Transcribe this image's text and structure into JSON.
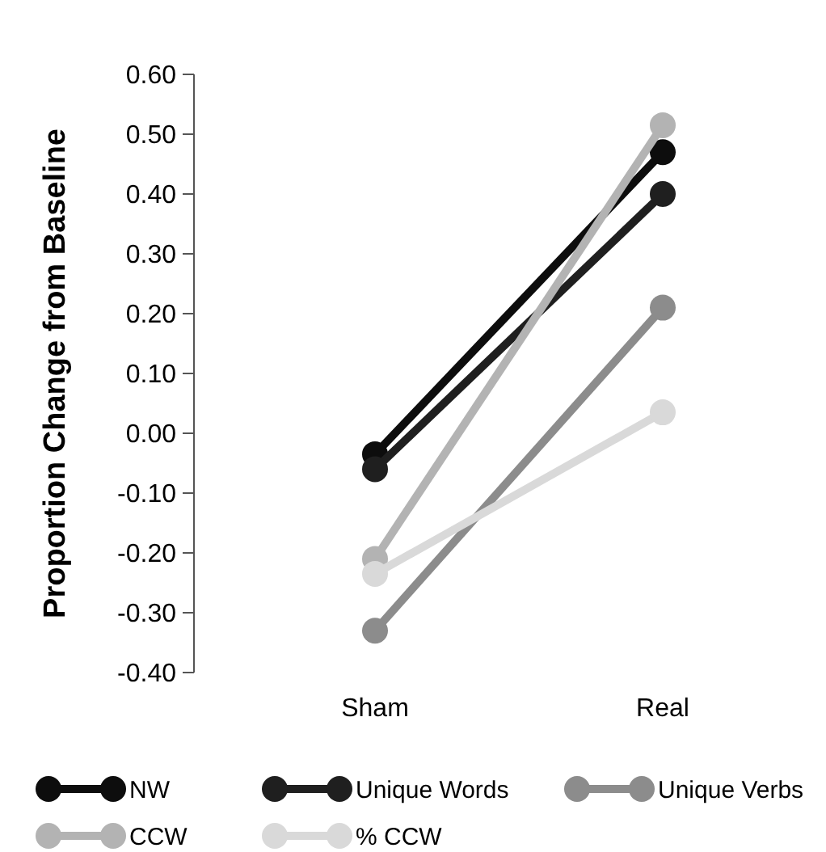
{
  "chart_data": {
    "type": "line",
    "ylabel": "Proportion Change from Baseline",
    "categories": [
      "Sham",
      "Real"
    ],
    "ylim": [
      -0.4,
      0.6
    ],
    "yticks": [
      {
        "value": -0.4,
        "label": "-0.40"
      },
      {
        "value": -0.3,
        "label": "-0.30"
      },
      {
        "value": -0.2,
        "label": "-0.20"
      },
      {
        "value": -0.1,
        "label": "-0.10"
      },
      {
        "value": 0,
        "label": "0.00"
      },
      {
        "value": 0.1,
        "label": "0.10"
      },
      {
        "value": 0.2,
        "label": "0.20"
      },
      {
        "value": 0.3,
        "label": "0.30"
      },
      {
        "value": 0.4,
        "label": "0.40"
      },
      {
        "value": 0.5,
        "label": "0.50"
      },
      {
        "value": 0.6,
        "label": "0.60"
      }
    ],
    "marker": "circle",
    "line_style": "solid",
    "legend": "bottom",
    "grid": false,
    "series": [
      {
        "name": "NW",
        "color": "#0d0d0d",
        "values": [
          -0.035,
          0.47
        ]
      },
      {
        "name": "Unique Words",
        "color": "#1f1f1f",
        "values": [
          -0.06,
          0.4
        ]
      },
      {
        "name": "Unique Verbs",
        "color": "#8c8c8c",
        "values": [
          -0.33,
          0.21
        ]
      },
      {
        "name": "CCW",
        "color": "#b3b3b3",
        "values": [
          -0.21,
          0.515
        ]
      },
      {
        "name": "% CCW",
        "color": "#d9d9d9",
        "values": [
          -0.235,
          0.035
        ]
      }
    ]
  }
}
